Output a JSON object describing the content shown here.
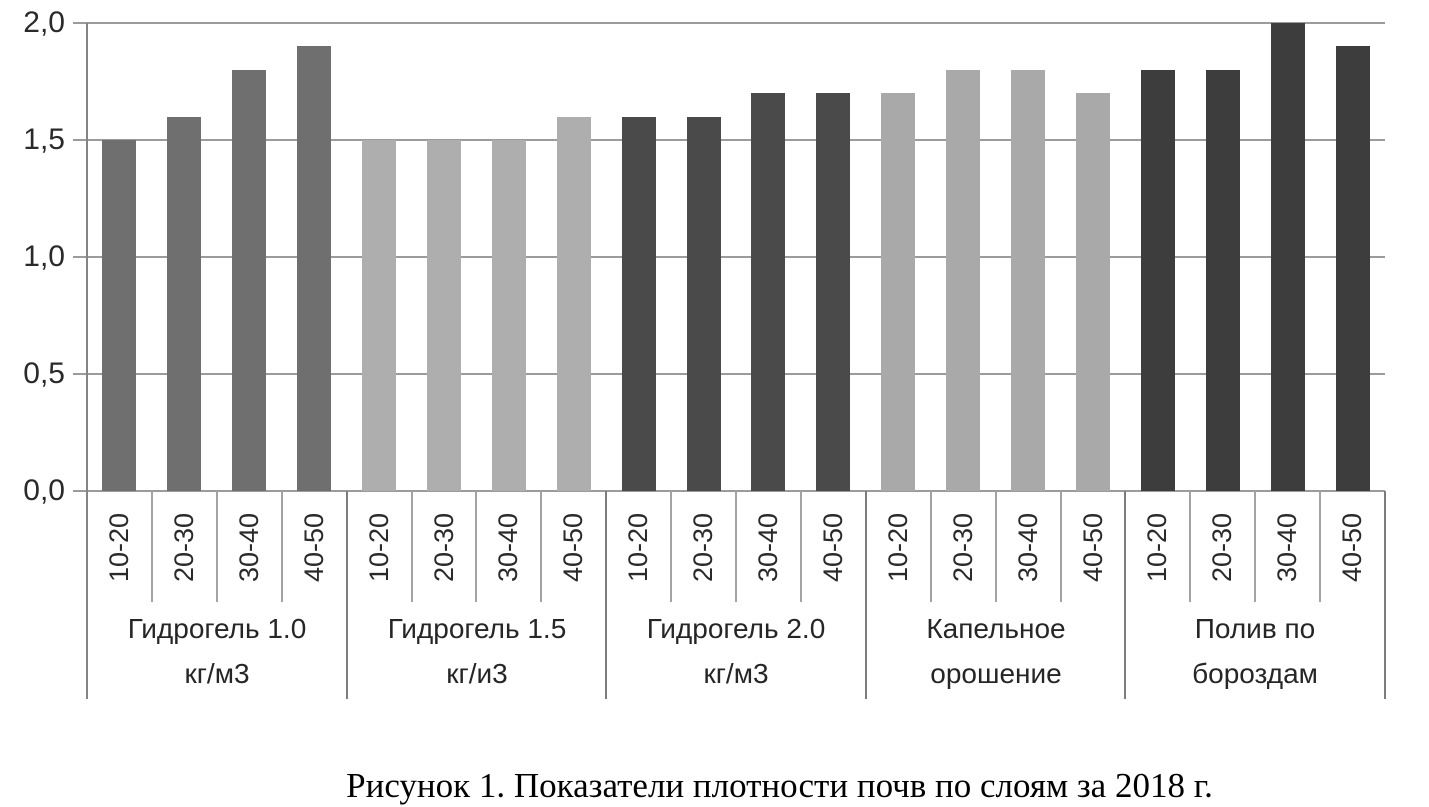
{
  "chart_data": {
    "type": "bar",
    "caption": "Рисунок 1. Показатели плотности почв по слоям за 2018 г.",
    "ylim": [
      0,
      2.0
    ],
    "grid": true,
    "legend": "none",
    "decimal_separator": ",",
    "yticks": [
      {
        "value": 0.0,
        "label": "0,0"
      },
      {
        "value": 0.5,
        "label": "0,5"
      },
      {
        "value": 1.0,
        "label": "1,0"
      },
      {
        "value": 1.5,
        "label": "1,5"
      },
      {
        "value": 2.0,
        "label": "2,0"
      }
    ],
    "categories": [
      "10-20",
      "20-30",
      "30-40",
      "40-50"
    ],
    "groups": [
      {
        "label_lines": [
          "Гидрогель 1.0",
          "кг/м3"
        ],
        "color": "#6f6f6f",
        "values": [
          1.5,
          1.6,
          1.8,
          1.9
        ]
      },
      {
        "label_lines": [
          "Гидрогель 1.5",
          "кг/и3"
        ],
        "color": "#aeaeae",
        "values": [
          1.5,
          1.5,
          1.5,
          1.6
        ]
      },
      {
        "label_lines": [
          "Гидрогель 2.0",
          "кг/м3"
        ],
        "color": "#4a4a4a",
        "values": [
          1.6,
          1.6,
          1.7,
          1.7
        ]
      },
      {
        "label_lines": [
          "Капельное",
          "орошение"
        ],
        "color": "#a9a9a9",
        "values": [
          1.7,
          1.8,
          1.8,
          1.7
        ]
      },
      {
        "label_lines": [
          "Полив по",
          "бороздам"
        ],
        "color": "#3d3d3d",
        "values": [
          1.8,
          1.8,
          2.0,
          1.9
        ]
      }
    ]
  }
}
